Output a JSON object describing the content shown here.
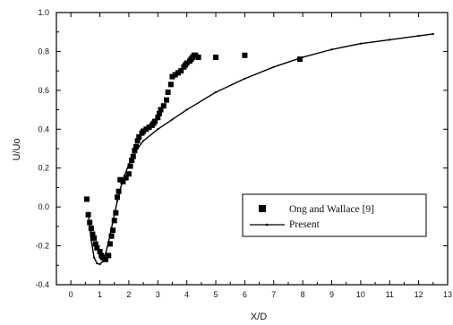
{
  "chart_data": {
    "type": "scatter",
    "title": "",
    "xlabel": "X/D",
    "ylabel": "U/Uo",
    "xlim": [
      -0.5,
      13
    ],
    "ylim": [
      -0.4,
      1.0
    ],
    "xticks": [
      0,
      1,
      2,
      3,
      4,
      5,
      6,
      7,
      8,
      9,
      10,
      11,
      12,
      13
    ],
    "yticks": [
      -0.4,
      -0.2,
      0.0,
      0.2,
      0.4,
      0.6,
      0.8,
      1.0
    ],
    "xtick_labels": [
      "0",
      "1",
      "2",
      "3",
      "4",
      "5",
      "6",
      "7",
      "8",
      "9",
      "10",
      "11",
      "12",
      "13"
    ],
    "ytick_labels": [
      "-0.4",
      "-0.2",
      "0.0",
      "0.2",
      "0.4",
      "0.6",
      "0.8",
      "1.0"
    ],
    "grid": false,
    "legend_position": "center-right",
    "series": [
      {
        "name": "Ong and Wallace [9]",
        "marker": "square",
        "color": "#000000",
        "points": [
          [
            0.55,
            0.04
          ],
          [
            0.6,
            -0.04
          ],
          [
            0.65,
            -0.08
          ],
          [
            0.7,
            -0.11
          ],
          [
            0.75,
            -0.14
          ],
          [
            0.8,
            -0.16
          ],
          [
            0.85,
            -0.19
          ],
          [
            0.9,
            -0.21
          ],
          [
            1.0,
            -0.23
          ],
          [
            1.05,
            -0.25
          ],
          [
            1.1,
            -0.26
          ],
          [
            1.2,
            -0.27
          ],
          [
            1.3,
            -0.25
          ],
          [
            1.35,
            -0.19
          ],
          [
            1.4,
            -0.15
          ],
          [
            1.45,
            -0.12
          ],
          [
            1.5,
            -0.07
          ],
          [
            1.55,
            -0.03
          ],
          [
            1.6,
            0.05
          ],
          [
            1.65,
            0.08
          ],
          [
            1.7,
            0.14
          ],
          [
            1.8,
            0.13
          ],
          [
            1.9,
            0.15
          ],
          [
            2.0,
            0.17
          ],
          [
            2.05,
            0.21
          ],
          [
            2.1,
            0.24
          ],
          [
            2.15,
            0.26
          ],
          [
            2.2,
            0.29
          ],
          [
            2.25,
            0.31
          ],
          [
            2.3,
            0.34
          ],
          [
            2.35,
            0.36
          ],
          [
            2.45,
            0.38
          ],
          [
            2.5,
            0.39
          ],
          [
            2.6,
            0.4
          ],
          [
            2.7,
            0.41
          ],
          [
            2.8,
            0.42
          ],
          [
            2.85,
            0.43
          ],
          [
            2.9,
            0.44
          ],
          [
            3.0,
            0.46
          ],
          [
            3.05,
            0.48
          ],
          [
            3.1,
            0.5
          ],
          [
            3.2,
            0.52
          ],
          [
            3.3,
            0.55
          ],
          [
            3.35,
            0.59
          ],
          [
            3.45,
            0.63
          ],
          [
            3.5,
            0.67
          ],
          [
            3.6,
            0.68
          ],
          [
            3.7,
            0.69
          ],
          [
            3.8,
            0.7
          ],
          [
            3.9,
            0.72
          ],
          [
            3.95,
            0.73
          ],
          [
            4.0,
            0.74
          ],
          [
            4.1,
            0.75
          ],
          [
            4.15,
            0.76
          ],
          [
            4.2,
            0.77
          ],
          [
            4.25,
            0.78
          ],
          [
            4.3,
            0.78
          ],
          [
            4.4,
            0.77
          ],
          [
            5.0,
            0.77
          ],
          [
            6.0,
            0.78
          ],
          [
            7.9,
            0.76
          ]
        ]
      },
      {
        "name": "Present",
        "line": "solid",
        "color": "#000000",
        "points": [
          [
            0.6,
            -0.03
          ],
          [
            0.7,
            -0.17
          ],
          [
            0.8,
            -0.26
          ],
          [
            0.9,
            -0.29
          ],
          [
            1.0,
            -0.295
          ],
          [
            1.1,
            -0.28
          ],
          [
            1.2,
            -0.24
          ],
          [
            1.3,
            -0.18
          ],
          [
            1.4,
            -0.11
          ],
          [
            1.5,
            -0.04
          ],
          [
            1.6,
            0.03
          ],
          [
            1.7,
            0.09
          ],
          [
            1.8,
            0.14
          ],
          [
            2.0,
            0.22
          ],
          [
            2.2,
            0.28
          ],
          [
            2.5,
            0.34
          ],
          [
            3.0,
            0.4
          ],
          [
            3.5,
            0.45
          ],
          [
            4.0,
            0.5
          ],
          [
            5.0,
            0.59
          ],
          [
            6.0,
            0.66
          ],
          [
            7.0,
            0.72
          ],
          [
            8.0,
            0.77
          ],
          [
            9.0,
            0.81
          ],
          [
            10.0,
            0.84
          ],
          [
            11.0,
            0.86
          ],
          [
            12.0,
            0.88
          ],
          [
            12.5,
            0.89
          ]
        ]
      }
    ]
  }
}
